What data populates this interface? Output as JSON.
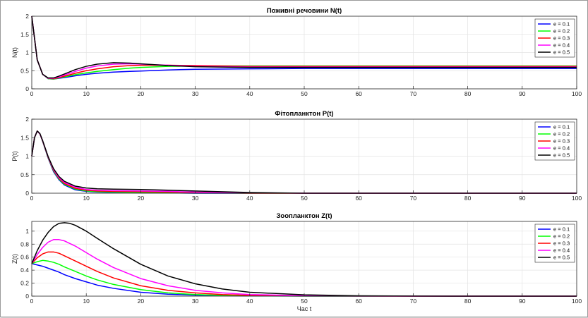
{
  "chart_data": [
    {
      "type": "line",
      "title": "Поживні речовини N(t)",
      "xlabel": "",
      "ylabel": "N(t)",
      "xlim": [
        0,
        100
      ],
      "ylim": [
        0,
        2
      ],
      "xticks": [
        0,
        10,
        20,
        30,
        40,
        50,
        60,
        70,
        80,
        90,
        100
      ],
      "yticks": [
        0,
        0.5,
        1,
        1.5,
        2
      ],
      "grid": true,
      "legend_position": "top-right",
      "series": [
        {
          "name": "e = 0.1",
          "color": "#0000ff",
          "x": [
            0,
            1,
            2,
            3,
            4,
            5,
            6,
            8,
            10,
            12,
            15,
            18,
            20,
            25,
            30,
            40,
            50,
            60,
            70,
            80,
            90,
            100
          ],
          "y": [
            2.0,
            0.8,
            0.4,
            0.28,
            0.27,
            0.29,
            0.31,
            0.36,
            0.4,
            0.43,
            0.46,
            0.48,
            0.49,
            0.52,
            0.54,
            0.55,
            0.56,
            0.56,
            0.56,
            0.56,
            0.56,
            0.56
          ]
        },
        {
          "name": "e = 0.2",
          "color": "#00ff00",
          "x": [
            0,
            1,
            2,
            3,
            4,
            5,
            6,
            8,
            10,
            12,
            15,
            18,
            20,
            25,
            30,
            40,
            50,
            60,
            70,
            80,
            90,
            100
          ],
          "y": [
            2.0,
            0.8,
            0.4,
            0.28,
            0.27,
            0.3,
            0.33,
            0.39,
            0.44,
            0.48,
            0.53,
            0.57,
            0.59,
            0.62,
            0.63,
            0.63,
            0.63,
            0.63,
            0.63,
            0.63,
            0.63,
            0.63
          ]
        },
        {
          "name": "e = 0.3",
          "color": "#ff0000",
          "x": [
            0,
            1,
            2,
            3,
            4,
            5,
            6,
            8,
            10,
            12,
            15,
            18,
            20,
            25,
            30,
            40,
            50,
            60,
            70,
            80,
            90,
            100
          ],
          "y": [
            2.0,
            0.8,
            0.4,
            0.29,
            0.28,
            0.31,
            0.35,
            0.43,
            0.5,
            0.55,
            0.61,
            0.64,
            0.65,
            0.65,
            0.64,
            0.62,
            0.62,
            0.62,
            0.62,
            0.62,
            0.62,
            0.62
          ]
        },
        {
          "name": "e = 0.4",
          "color": "#ff00ff",
          "x": [
            0,
            1,
            2,
            3,
            4,
            5,
            6,
            8,
            10,
            12,
            15,
            18,
            20,
            25,
            30,
            40,
            50,
            60,
            70,
            80,
            90,
            100
          ],
          "y": [
            2.0,
            0.8,
            0.4,
            0.29,
            0.29,
            0.33,
            0.38,
            0.48,
            0.57,
            0.63,
            0.68,
            0.69,
            0.68,
            0.65,
            0.62,
            0.6,
            0.6,
            0.6,
            0.6,
            0.6,
            0.6,
            0.6
          ]
        },
        {
          "name": "e = 0.5",
          "color": "#000000",
          "x": [
            0,
            1,
            2,
            3,
            4,
            5,
            6,
            8,
            10,
            12,
            15,
            18,
            20,
            25,
            30,
            40,
            50,
            60,
            70,
            80,
            90,
            100
          ],
          "y": [
            2.0,
            0.8,
            0.4,
            0.3,
            0.3,
            0.35,
            0.41,
            0.53,
            0.62,
            0.68,
            0.72,
            0.71,
            0.69,
            0.64,
            0.61,
            0.59,
            0.59,
            0.59,
            0.59,
            0.59,
            0.59,
            0.59
          ]
        }
      ]
    },
    {
      "type": "line",
      "title": "Фітопланктон P(t)",
      "xlabel": "",
      "ylabel": "P(t)",
      "xlim": [
        0,
        100
      ],
      "ylim": [
        0,
        2
      ],
      "xticks": [
        0,
        10,
        20,
        30,
        40,
        50,
        60,
        70,
        80,
        90,
        100
      ],
      "yticks": [
        0,
        0.5,
        1,
        1.5,
        2
      ],
      "grid": true,
      "legend_position": "top-right",
      "series": [
        {
          "name": "e = 0.1",
          "color": "#0000ff",
          "x": [
            0,
            0.5,
            1,
            1.5,
            2,
            3,
            4,
            5,
            6,
            8,
            10,
            12,
            15,
            20,
            25,
            30,
            40,
            50,
            60,
            80,
            100
          ],
          "y": [
            1.0,
            1.5,
            1.68,
            1.6,
            1.4,
            0.95,
            0.58,
            0.36,
            0.22,
            0.09,
            0.05,
            0.03,
            0.02,
            0.01,
            0.01,
            0.0,
            0.0,
            0.0,
            0.0,
            0.0,
            0.0
          ]
        },
        {
          "name": "e = 0.2",
          "color": "#00ff00",
          "x": [
            0,
            0.5,
            1,
            1.5,
            2,
            3,
            4,
            5,
            6,
            8,
            10,
            12,
            15,
            20,
            25,
            30,
            40,
            50,
            60,
            80,
            100
          ],
          "y": [
            1.0,
            1.5,
            1.68,
            1.6,
            1.4,
            0.96,
            0.6,
            0.38,
            0.24,
            0.11,
            0.06,
            0.04,
            0.03,
            0.02,
            0.01,
            0.01,
            0.0,
            0.0,
            0.0,
            0.0,
            0.0
          ]
        },
        {
          "name": "e = 0.3",
          "color": "#ff0000",
          "x": [
            0,
            0.5,
            1,
            1.5,
            2,
            3,
            4,
            5,
            6,
            8,
            10,
            12,
            15,
            20,
            25,
            30,
            40,
            50,
            60,
            80,
            100
          ],
          "y": [
            1.0,
            1.5,
            1.68,
            1.6,
            1.41,
            0.97,
            0.62,
            0.4,
            0.26,
            0.13,
            0.08,
            0.06,
            0.05,
            0.04,
            0.03,
            0.02,
            0.0,
            0.0,
            0.0,
            0.0,
            0.0
          ]
        },
        {
          "name": "e = 0.4",
          "color": "#ff00ff",
          "x": [
            0,
            0.5,
            1,
            1.5,
            2,
            3,
            4,
            5,
            6,
            8,
            10,
            12,
            15,
            20,
            25,
            30,
            40,
            50,
            60,
            80,
            100
          ],
          "y": [
            1.0,
            1.5,
            1.68,
            1.6,
            1.41,
            0.98,
            0.64,
            0.42,
            0.29,
            0.16,
            0.1,
            0.08,
            0.07,
            0.06,
            0.05,
            0.03,
            0.01,
            0.0,
            0.0,
            0.0,
            0.0
          ]
        },
        {
          "name": "e = 0.5",
          "color": "#000000",
          "x": [
            0,
            0.5,
            1,
            1.5,
            2,
            3,
            4,
            5,
            6,
            8,
            10,
            12,
            15,
            20,
            25,
            30,
            40,
            50,
            60,
            80,
            100
          ],
          "y": [
            1.0,
            1.5,
            1.68,
            1.61,
            1.42,
            0.99,
            0.66,
            0.45,
            0.32,
            0.19,
            0.14,
            0.12,
            0.11,
            0.1,
            0.08,
            0.06,
            0.02,
            0.0,
            0.0,
            0.0,
            0.0
          ]
        }
      ]
    },
    {
      "type": "line",
      "title": "Зоопланктон Z(t)",
      "xlabel": "Час t",
      "ylabel": "Z(t)",
      "xlim": [
        0,
        100
      ],
      "ylim": [
        0,
        1.15
      ],
      "xticks": [
        0,
        10,
        20,
        30,
        40,
        50,
        60,
        70,
        80,
        90,
        100
      ],
      "yticks": [
        0,
        0.2,
        0.4,
        0.6,
        0.8,
        1
      ],
      "grid": true,
      "legend_position": "top-right",
      "series": [
        {
          "name": "e = 0.1",
          "color": "#0000ff",
          "x": [
            0,
            1,
            2,
            3,
            4,
            5,
            6,
            8,
            10,
            12,
            15,
            20,
            25,
            30,
            35,
            40,
            50,
            60,
            70,
            80,
            100
          ],
          "y": [
            0.5,
            0.48,
            0.46,
            0.43,
            0.4,
            0.37,
            0.33,
            0.27,
            0.22,
            0.17,
            0.12,
            0.06,
            0.03,
            0.015,
            0.008,
            0.004,
            0.001,
            0.0,
            0.0,
            0.0,
            0.0
          ]
        },
        {
          "name": "e = 0.2",
          "color": "#00ff00",
          "x": [
            0,
            1,
            2,
            3,
            4,
            5,
            6,
            8,
            10,
            12,
            15,
            20,
            25,
            30,
            35,
            40,
            50,
            60,
            70,
            80,
            100
          ],
          "y": [
            0.5,
            0.53,
            0.55,
            0.54,
            0.52,
            0.49,
            0.45,
            0.38,
            0.31,
            0.25,
            0.18,
            0.1,
            0.05,
            0.025,
            0.012,
            0.006,
            0.002,
            0.0,
            0.0,
            0.0,
            0.0
          ]
        },
        {
          "name": "e = 0.3",
          "color": "#ff0000",
          "x": [
            0,
            1,
            2,
            3,
            4,
            5,
            6,
            8,
            10,
            12,
            15,
            20,
            25,
            30,
            35,
            40,
            50,
            60,
            70,
            80,
            100
          ],
          "y": [
            0.5,
            0.59,
            0.65,
            0.68,
            0.68,
            0.66,
            0.62,
            0.54,
            0.46,
            0.38,
            0.28,
            0.16,
            0.09,
            0.05,
            0.025,
            0.012,
            0.003,
            0.001,
            0.0,
            0.0,
            0.0
          ]
        },
        {
          "name": "e = 0.4",
          "color": "#ff00ff",
          "x": [
            0,
            1,
            2,
            3,
            4,
            5,
            6,
            8,
            10,
            12,
            15,
            20,
            25,
            30,
            35,
            40,
            50,
            60,
            70,
            80,
            100
          ],
          "y": [
            0.5,
            0.64,
            0.75,
            0.83,
            0.87,
            0.87,
            0.85,
            0.77,
            0.67,
            0.57,
            0.44,
            0.27,
            0.16,
            0.09,
            0.05,
            0.025,
            0.007,
            0.002,
            0.0,
            0.0,
            0.0
          ]
        },
        {
          "name": "e = 0.5",
          "color": "#000000",
          "x": [
            0,
            1,
            2,
            3,
            4,
            5,
            6,
            7,
            8,
            10,
            12,
            15,
            20,
            25,
            30,
            35,
            40,
            50,
            60,
            70,
            80,
            100
          ],
          "y": [
            0.5,
            0.7,
            0.86,
            0.98,
            1.07,
            1.12,
            1.13,
            1.12,
            1.09,
            1.0,
            0.89,
            0.73,
            0.49,
            0.31,
            0.19,
            0.11,
            0.06,
            0.02,
            0.005,
            0.001,
            0.0,
            0.0
          ]
        }
      ]
    }
  ]
}
